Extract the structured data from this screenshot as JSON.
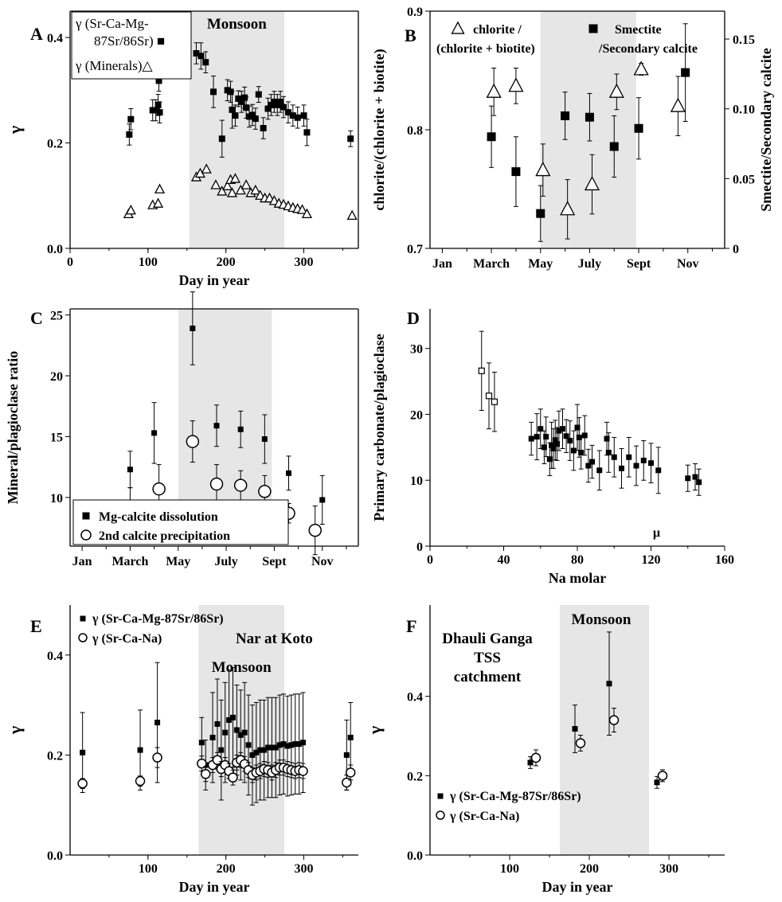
{
  "chart_data": [
    {
      "panel": "A",
      "type": "scatter",
      "panel_label": "A",
      "xlabel": "Day in year",
      "ylabel": "γ",
      "xlim": [
        0,
        370
      ],
      "ylim": [
        0,
        0.45
      ],
      "xticks": [
        "0",
        "100",
        "200",
        "300"
      ],
      "yticks": [
        "0.0",
        "0.2",
        "0.4"
      ],
      "shade": [
        153,
        275
      ],
      "annotation": "Monsoon",
      "legend_lines": [
        "γ (Sr-Ca-Mg-",
        "87Sr/86Sr) ■",
        "γ (Minerals)△"
      ],
      "series": [
        {
          "name": "γ (Sr-Ca-Mg-87Sr/86Sr)",
          "marker": "square",
          "x": [
            76,
            78,
            106,
            110,
            113,
            114,
            115,
            162,
            168,
            174,
            184,
            195,
            202,
            206,
            208,
            212,
            216,
            220,
            224,
            226,
            230,
            234,
            238,
            242,
            248,
            254,
            258,
            262,
            266,
            270,
            274,
            280,
            286,
            292,
            300,
            304,
            360
          ],
          "y": [
            0.216,
            0.245,
            0.262,
            0.262,
            0.272,
            0.318,
            0.258,
            0.37,
            0.365,
            0.353,
            0.297,
            0.208,
            0.3,
            0.297,
            0.263,
            0.252,
            0.284,
            0.278,
            0.286,
            0.267,
            0.25,
            0.253,
            0.246,
            0.292,
            0.228,
            0.265,
            0.272,
            0.278,
            0.272,
            0.278,
            0.268,
            0.258,
            0.252,
            0.248,
            0.252,
            0.22,
            0.208
          ],
          "err": [
            0.02,
            0.02,
            0.02,
            0.02,
            0.02,
            0.02,
            0.02,
            0.02,
            0.025,
            0.02,
            0.03,
            0.035,
            0.02,
            0.02,
            0.035,
            0.02,
            0.015,
            0.02,
            0.02,
            0.02,
            0.02,
            0.02,
            0.02,
            0.015,
            0.02,
            0.02,
            0.02,
            0.02,
            0.02,
            0.02,
            0.02,
            0.02,
            0.02,
            0.02,
            0.02,
            0.025,
            0.015
          ]
        },
        {
          "name": "γ (Minerals)",
          "marker": "triangle",
          "x": [
            75,
            78,
            106,
            113,
            115,
            162,
            167,
            175,
            187,
            195,
            202,
            206,
            208,
            212,
            219,
            226,
            232,
            238,
            244,
            250,
            256,
            262,
            268,
            274,
            280,
            286,
            292,
            298,
            304,
            362
          ],
          "y": [
            0.065,
            0.072,
            0.082,
            0.085,
            0.112,
            0.135,
            0.142,
            0.15,
            0.12,
            0.108,
            0.118,
            0.13,
            0.105,
            0.132,
            0.11,
            0.12,
            0.105,
            0.11,
            0.1,
            0.095,
            0.095,
            0.09,
            0.085,
            0.083,
            0.08,
            0.077,
            0.075,
            0.073,
            0.065,
            0.062
          ]
        }
      ]
    },
    {
      "panel": "B",
      "type": "scatter",
      "panel_label": "B",
      "ylabel": "chlorite/(chlorite + biotite)",
      "y2label": "Smectite/Secondary calcite",
      "xcategories": [
        "Jan",
        "March",
        "May",
        "July",
        "Sept",
        "Nov"
      ],
      "ylim": [
        0.7,
        0.9
      ],
      "y2lim": [
        0,
        0.17
      ],
      "yticks": [
        "0.7",
        "0.8",
        "0.9"
      ],
      "y2ticks": [
        "0",
        "0.05",
        "0.10",
        "0.15"
      ],
      "shade": [
        5.0,
        8.9
      ],
      "legend_lines": [
        "chlorite /",
        "(chlorite + biotite)",
        "Smectite",
        "/Secondary calcite"
      ],
      "series": [
        {
          "name": "chlorite / (chlorite + biotite)",
          "marker": "triangle",
          "axis": "left",
          "x": [
            3.1,
            4.0,
            5.1,
            6.1,
            7.1,
            8.1,
            9.1,
            10.6
          ],
          "y": [
            0.832,
            0.837,
            0.766,
            0.733,
            0.754,
            0.832,
            0.851,
            0.82
          ],
          "err": [
            0.02,
            0.015,
            0.022,
            0.025,
            0.025,
            0.015,
            0.005,
            0.025
          ]
        },
        {
          "name": "Smectite /Secondary calcite",
          "marker": "square",
          "axis": "right",
          "x": [
            3.0,
            4.0,
            5.0,
            6.0,
            7.0,
            8.0,
            9.0,
            10.9
          ],
          "y": [
            0.08,
            0.055,
            0.025,
            0.095,
            0.094,
            0.073,
            0.086,
            0.126
          ],
          "err": [
            0.022,
            0.025,
            0.02,
            0.017,
            0.017,
            0.022,
            0.022,
            0.035
          ]
        }
      ]
    },
    {
      "panel": "C",
      "type": "scatter",
      "panel_label": "C",
      "ylabel": "Mineral/plagioclase ratio",
      "xcategories": [
        "Jan",
        "March",
        "May",
        "July",
        "Sept",
        "Nov"
      ],
      "ylim": [
        6,
        25.5
      ],
      "yticks": [
        "10",
        "15",
        "20",
        "25"
      ],
      "shade": [
        5.0,
        8.9
      ],
      "legend": [
        "Mg-calcite dissolution",
        "2nd calcite precipitation"
      ],
      "series": [
        {
          "name": "Mg-calcite dissolution",
          "marker": "square",
          "x": [
            3.0,
            4.0,
            5.6,
            6.6,
            7.6,
            8.6,
            9.6,
            11.0
          ],
          "y": [
            12.3,
            15.3,
            23.9,
            15.9,
            15.6,
            14.8,
            12.0,
            9.8
          ],
          "err": [
            1.5,
            2.5,
            3.0,
            1.7,
            1.5,
            2.0,
            1.4,
            2.0
          ]
        },
        {
          "name": "2nd calcite precipitation",
          "marker": "circle",
          "x": [
            3.0,
            4.2,
            5.6,
            6.6,
            7.6,
            8.6,
            9.6,
            10.7
          ],
          "y": [
            9.3,
            10.7,
            14.6,
            11.1,
            11.0,
            10.5,
            8.7,
            7.3
          ],
          "err": [
            1.5,
            2.0,
            1.7,
            1.6,
            1.2,
            1.3,
            0.8,
            2.0
          ]
        }
      ]
    },
    {
      "panel": "D",
      "type": "scatter",
      "panel_label": "D",
      "ylabel": "Primary carbonate/plagioclase",
      "xlabel": "Na    molar",
      "xunit_symbol": "µ",
      "xlim": [
        0,
        160
      ],
      "ylim": [
        0,
        36
      ],
      "xticks": [
        "0",
        "40",
        "80",
        "120",
        "160"
      ],
      "yticks": [
        "0",
        "10",
        "20",
        "30"
      ],
      "series": [
        {
          "name": "open squares",
          "marker": "open-square",
          "x": [
            28,
            32,
            35
          ],
          "y": [
            26.6,
            22.8,
            21.9
          ],
          "err": [
            6.0,
            5.0,
            4.5
          ]
        },
        {
          "name": "filled squares",
          "marker": "square",
          "x": [
            55,
            58,
            60,
            62,
            63,
            65,
            66,
            67,
            68,
            69,
            70,
            72,
            74,
            76,
            78,
            80,
            81,
            82,
            84,
            86,
            88,
            92,
            96,
            97,
            100,
            104,
            108,
            112,
            116,
            120,
            124,
            140,
            144,
            146
          ],
          "y": [
            16.3,
            16.6,
            17.8,
            15.0,
            16.6,
            13.2,
            15.3,
            14.8,
            16.1,
            15.5,
            17.5,
            17.8,
            16.7,
            16.0,
            14.5,
            18.0,
            16.5,
            14.2,
            16.8,
            12.2,
            12.8,
            11.5,
            16.3,
            14.2,
            13.5,
            11.8,
            13.5,
            12.2,
            13.0,
            12.6,
            11.5,
            10.3,
            10.5,
            9.7
          ],
          "err": [
            2.5,
            3.5,
            3.0,
            2.5,
            3.0,
            2.5,
            3.5,
            3.0,
            3.0,
            2.5,
            3.0,
            3.0,
            2.5,
            3.0,
            3.0,
            3.5,
            3.0,
            2.5,
            3.0,
            2.5,
            2.5,
            3.0,
            2.5,
            3.0,
            3.0,
            3.0,
            3.0,
            3.0,
            3.0,
            3.0,
            3.5,
            2.0,
            2.0,
            2.0
          ]
        }
      ]
    },
    {
      "panel": "E",
      "type": "scatter",
      "panel_label": "E",
      "xlabel": "Day in year",
      "ylabel": "γ",
      "xlim": [
        0,
        370
      ],
      "ylim": [
        0,
        0.5
      ],
      "xticks": [
        "100",
        "200",
        "300"
      ],
      "yticks": [
        "0.0",
        "0.2",
        "0.4"
      ],
      "shade": [
        165,
        275
      ],
      "annotation": "Monsoon",
      "site": "Nar at Koto",
      "legend_lines": [
        "γ (Sr-Ca-Mg-87Sr/86Sr)",
        "γ  (Sr-Ca-Na)"
      ],
      "series": [
        {
          "name": "γ (Sr-Ca-Mg-87Sr/86Sr)",
          "marker": "square",
          "x": [
            16,
            90,
            112,
            169,
            174,
            183,
            189,
            194,
            199,
            204,
            209,
            214,
            219,
            224,
            229,
            234,
            239,
            244,
            249,
            254,
            259,
            264,
            269,
            274,
            279,
            284,
            289,
            294,
            299,
            355,
            360
          ],
          "y": [
            0.205,
            0.21,
            0.265,
            0.225,
            0.18,
            0.235,
            0.262,
            0.21,
            0.245,
            0.27,
            0.275,
            0.25,
            0.24,
            0.245,
            0.22,
            0.2,
            0.205,
            0.21,
            0.21,
            0.215,
            0.215,
            0.215,
            0.22,
            0.222,
            0.218,
            0.22,
            0.222,
            0.222,
            0.225,
            0.2,
            0.235
          ],
          "err": [
            0.08,
            0.08,
            0.12,
            0.05,
            0.05,
            0.09,
            0.09,
            0.1,
            0.1,
            0.1,
            0.1,
            0.09,
            0.09,
            0.1,
            0.1,
            0.1,
            0.1,
            0.1,
            0.1,
            0.1,
            0.1,
            0.1,
            0.1,
            0.1,
            0.1,
            0.1,
            0.1,
            0.1,
            0.1,
            0.07,
            0.07
          ]
        },
        {
          "name": "γ  (Sr-Ca-Na)",
          "marker": "circle",
          "x": [
            16,
            90,
            112,
            169,
            174,
            183,
            189,
            194,
            199,
            204,
            209,
            214,
            219,
            224,
            229,
            234,
            239,
            244,
            249,
            254,
            259,
            264,
            269,
            274,
            279,
            284,
            289,
            294,
            299,
            355,
            360
          ],
          "y": [
            0.143,
            0.148,
            0.195,
            0.183,
            0.162,
            0.18,
            0.19,
            0.172,
            0.18,
            0.168,
            0.155,
            0.185,
            0.19,
            0.182,
            0.17,
            0.16,
            0.165,
            0.168,
            0.172,
            0.17,
            0.165,
            0.17,
            0.175,
            0.175,
            0.172,
            0.17,
            0.168,
            0.17,
            0.168,
            0.145,
            0.165
          ],
          "err": [
            0.01,
            0.01,
            0.02,
            0.015,
            0.015,
            0.015,
            0.015,
            0.015,
            0.015,
            0.015,
            0.015,
            0.015,
            0.015,
            0.015,
            0.015,
            0.015,
            0.015,
            0.015,
            0.015,
            0.015,
            0.015,
            0.015,
            0.015,
            0.015,
            0.015,
            0.015,
            0.015,
            0.015,
            0.015,
            0.015,
            0.015
          ]
        }
      ]
    },
    {
      "panel": "F",
      "type": "scatter",
      "panel_label": "F",
      "xlabel": "Day in year",
      "ylabel": "γ",
      "xlim": [
        0,
        370
      ],
      "ylim": [
        0,
        0.63
      ],
      "xticks": [
        "100",
        "200",
        "300"
      ],
      "yticks": [
        "0.0",
        "0.2",
        "0.4"
      ],
      "shade": [
        163,
        275
      ],
      "annotation": "Monsoon",
      "site_lines": [
        "Dhauli Ganga",
        "TSS",
        "catchment"
      ],
      "legend_lines": [
        "γ (Sr-Ca-Mg-87Sr/86Sr)",
        "γ  (Sr-Ca-Na)"
      ],
      "series": [
        {
          "name": "γ (Sr-Ca-Mg-87Sr/86Sr)",
          "marker": "square",
          "x": [
            126,
            182,
            225,
            285
          ],
          "y": [
            0.233,
            0.318,
            0.432,
            0.183
          ],
          "err": [
            0.015,
            0.06,
            0.13,
            0.015
          ]
        },
        {
          "name": "γ  (Sr-Ca-Na)",
          "marker": "circle",
          "x": [
            133,
            189,
            231,
            292
          ],
          "y": [
            0.245,
            0.282,
            0.34,
            0.2
          ],
          "err": [
            0.02,
            0.02,
            0.03,
            0.015
          ]
        }
      ]
    }
  ]
}
